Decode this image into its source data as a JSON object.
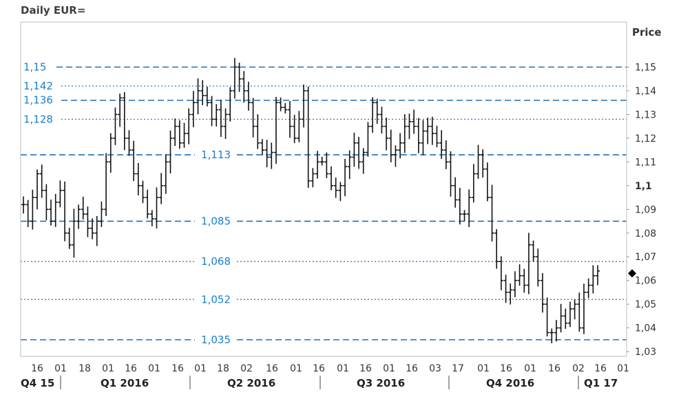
{
  "title": "Daily EUR=",
  "chart_data": {
    "type": "ohlc",
    "title": "Daily EUR=",
    "ylabel": "Price",
    "ylim": [
      1.028,
      1.169
    ],
    "y_ticks": [
      "1,15",
      "1,14",
      "1,13",
      "1,12",
      "1,11",
      "1,1",
      "1,09",
      "1,08",
      "1,07",
      "1,06",
      "1,05",
      "1,04",
      "1,03"
    ],
    "y_tick_values": [
      1.15,
      1.14,
      1.13,
      1.12,
      1.11,
      1.1,
      1.09,
      1.08,
      1.07,
      1.06,
      1.05,
      1.04,
      1.03
    ],
    "bold_tick": "1,1",
    "x_ticks": [
      "16",
      "01",
      "18",
      "01",
      "16",
      "01",
      "16",
      "01",
      "18",
      "02",
      "16",
      "01",
      "16",
      "01",
      "16",
      "01",
      "16",
      "03",
      "17",
      "01",
      "16",
      "01",
      "16",
      "02",
      "16",
      "01"
    ],
    "quarters": [
      "Q4 15",
      "Q1 2016",
      "Q2 2016",
      "Q3 2016",
      "Q4 2016",
      "Q1 17"
    ],
    "levels": [
      {
        "label": "1,15",
        "value": 1.15,
        "style": "dashed"
      },
      {
        "label": "1,142",
        "value": 1.142,
        "style": "dotted"
      },
      {
        "label": "1,136",
        "value": 1.136,
        "style": "dashed"
      },
      {
        "label": "1,128",
        "value": 1.128,
        "style": "dotted"
      },
      {
        "label": "1,113",
        "value": 1.113,
        "style": "dashed"
      },
      {
        "label": "1,085",
        "value": 1.085,
        "style": "dashed"
      },
      {
        "label": "1,068",
        "value": 1.068,
        "style": "dotted"
      },
      {
        "label": "1,052",
        "value": 1.052,
        "style": "dotted"
      },
      {
        "label": "1,035",
        "value": 1.035,
        "style": "dashed"
      }
    ],
    "last_price": 1.063,
    "series": [
      {
        "values": [
          1.092,
          1.085,
          1.095,
          1.105,
          1.098,
          1.09,
          1.085,
          1.093,
          1.098,
          1.08,
          1.075,
          1.085,
          1.09,
          1.088,
          1.082,
          1.08,
          1.085,
          1.09,
          1.11,
          1.12,
          1.13,
          1.137,
          1.12,
          1.115,
          1.105,
          1.1,
          1.095,
          1.088,
          1.086,
          1.095,
          1.1,
          1.11,
          1.12,
          1.125,
          1.118,
          1.122,
          1.13,
          1.135,
          1.14,
          1.138,
          1.135,
          1.128,
          1.132,
          1.125,
          1.13,
          1.14,
          1.15,
          1.145,
          1.14,
          1.135,
          1.125,
          1.118,
          1.115,
          1.112,
          1.114,
          1.135,
          1.133,
          1.132,
          1.125,
          1.12,
          1.128,
          1.14,
          1.102,
          1.105,
          1.11,
          1.11,
          1.105,
          1.1,
          1.098,
          1.1,
          1.108,
          1.112,
          1.118,
          1.11,
          1.114,
          1.125,
          1.135,
          1.13,
          1.125,
          1.12,
          1.113,
          1.115,
          1.118,
          1.125,
          1.127,
          1.125,
          1.118,
          1.123,
          1.125,
          1.122,
          1.118,
          1.115,
          1.11,
          1.1,
          1.094,
          1.088,
          1.088,
          1.095,
          1.105,
          1.113,
          1.107,
          1.095,
          1.08,
          1.068,
          1.06,
          1.055,
          1.056,
          1.06,
          1.062,
          1.058,
          1.075,
          1.07,
          1.06,
          1.05,
          1.038,
          1.038,
          1.04,
          1.045,
          1.042,
          1.048,
          1.05,
          1.04,
          1.055,
          1.058,
          1.062,
          1.064
        ]
      }
    ]
  }
}
